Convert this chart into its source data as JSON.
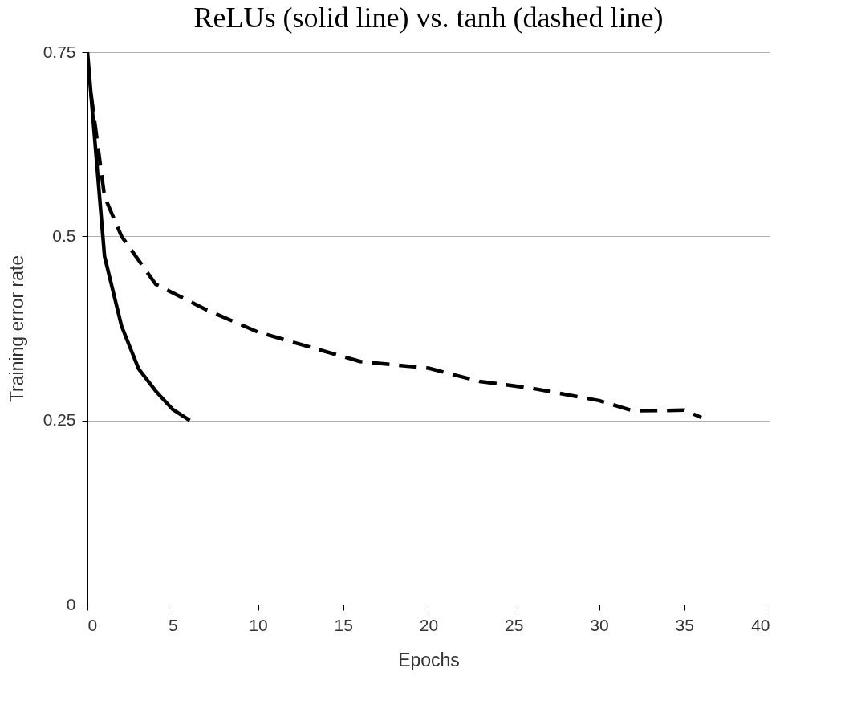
{
  "chart_data": {
    "type": "line",
    "title": "ReLUs (solid line) vs. tanh (dashed line)",
    "xlabel": "Epochs",
    "ylabel": "Training error rate",
    "xlim": [
      0,
      40
    ],
    "xticks": [
      0,
      5,
      10,
      15,
      20,
      25,
      30,
      35,
      40
    ],
    "ylim": [
      0,
      0.75
    ],
    "yticks": [
      0,
      0.25,
      0.5,
      0.75
    ],
    "grid": "y",
    "legend": false,
    "marker": "none",
    "series": [
      {
        "color": "#000000",
        "line_style": "solid",
        "x": [
          0,
          1,
          2,
          3,
          4,
          5,
          6
        ],
        "values": [
          0.75,
          0.473,
          0.378,
          0.32,
          0.29,
          0.265,
          0.25
        ]
      },
      {
        "color": "#000000",
        "line_style": "dashed",
        "x": [
          0,
          1,
          2,
          4,
          7,
          10,
          16,
          20,
          23,
          26,
          30,
          32,
          35,
          36
        ],
        "values": [
          0.73,
          0.554,
          0.5,
          0.435,
          0.4,
          0.37,
          0.33,
          0.321,
          0.303,
          0.294,
          0.277,
          0.263,
          0.264,
          0.254
        ]
      }
    ]
  }
}
